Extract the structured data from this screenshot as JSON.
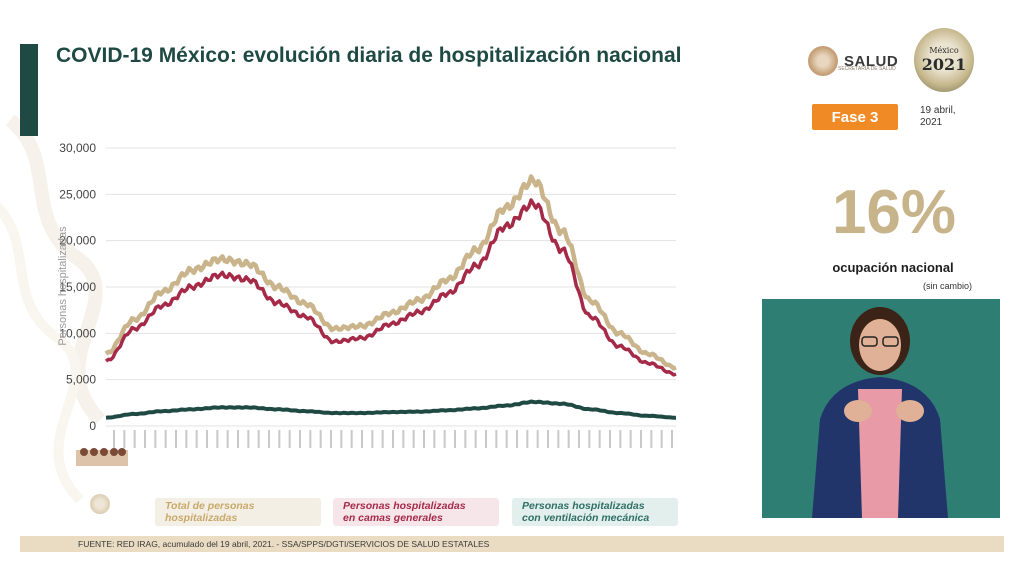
{
  "header": {
    "title": "COVID-19 México: evolución diaria de hospitalización nacional"
  },
  "branding": {
    "salud_label": "SALUD",
    "salud_sub": "SECRETARÍA DE SALUD",
    "logo_year": "2021",
    "logo_text": "México"
  },
  "status": {
    "fase_label": "Fase 3",
    "date_line1": "19 abril,",
    "date_line2": "2021",
    "occupancy_pct": "16%",
    "occupancy_label": "ocupación nacional",
    "occupancy_change": "(sin cambio)"
  },
  "colors": {
    "total": "#c9b48c",
    "generales": "#a52a48",
    "ventilacion": "#1f4a44",
    "accent": "#1f4a44",
    "fase": "#f08a24"
  },
  "chart_data": {
    "type": "line",
    "title": "COVID-19 México: evolución diaria de hospitalización nacional",
    "ylabel": "Personas hospitalizadas",
    "ylim": [
      0,
      30000
    ],
    "yticks": [
      "30,000",
      "25,000",
      "20,000",
      "15,000",
      "10,000",
      "5,000",
      "0"
    ],
    "ytick_values": [
      30000,
      25000,
      20000,
      15000,
      10000,
      5000,
      0
    ],
    "grid": true,
    "x": [
      0,
      5,
      10,
      15,
      20,
      25,
      30,
      35,
      40,
      45,
      50,
      55,
      60,
      65,
      70,
      75,
      80,
      85,
      90,
      95,
      100
    ],
    "series": [
      {
        "name": "Total de personas hospitalizadas",
        "values": [
          7800,
          11500,
          14500,
          16800,
          18000,
          17500,
          15000,
          13200,
          10500,
          10800,
          12200,
          13600,
          15800,
          19000,
          23500,
          26500,
          21000,
          13500,
          10000,
          7800,
          6300
        ]
      },
      {
        "name": "Personas hospitalizadas en camas generales",
        "values": [
          7000,
          10500,
          13000,
          15000,
          16300,
          15800,
          13300,
          11800,
          9100,
          9500,
          11000,
          12300,
          14300,
          17300,
          21500,
          24000,
          19000,
          11800,
          8600,
          6800,
          5600
        ]
      },
      {
        "name": "Personas hospitalizadas con ventilación mecánica",
        "values": [
          900,
          1300,
          1600,
          1800,
          2000,
          2000,
          1800,
          1600,
          1400,
          1400,
          1500,
          1550,
          1700,
          1900,
          2200,
          2600,
          2400,
          1800,
          1400,
          1100,
          900
        ]
      }
    ]
  },
  "legend": {
    "total_line1": "Total de personas",
    "total_line2": "hospitalizadas",
    "generales_line1": "Personas hospitalizadas",
    "generales_line2": "en camas generales",
    "ventilacion_line1": "Personas hospitalizadas",
    "ventilacion_line2": "con ventilación mecánica"
  },
  "footer": {
    "source": "FUENTE: RED IRAG, acumulado del 19 abril, 2021. -  SSA/SPPS/DGTI/SERVICIOS DE SALUD ESTATALES"
  },
  "video": {
    "description_icon": "interpreter-video"
  }
}
